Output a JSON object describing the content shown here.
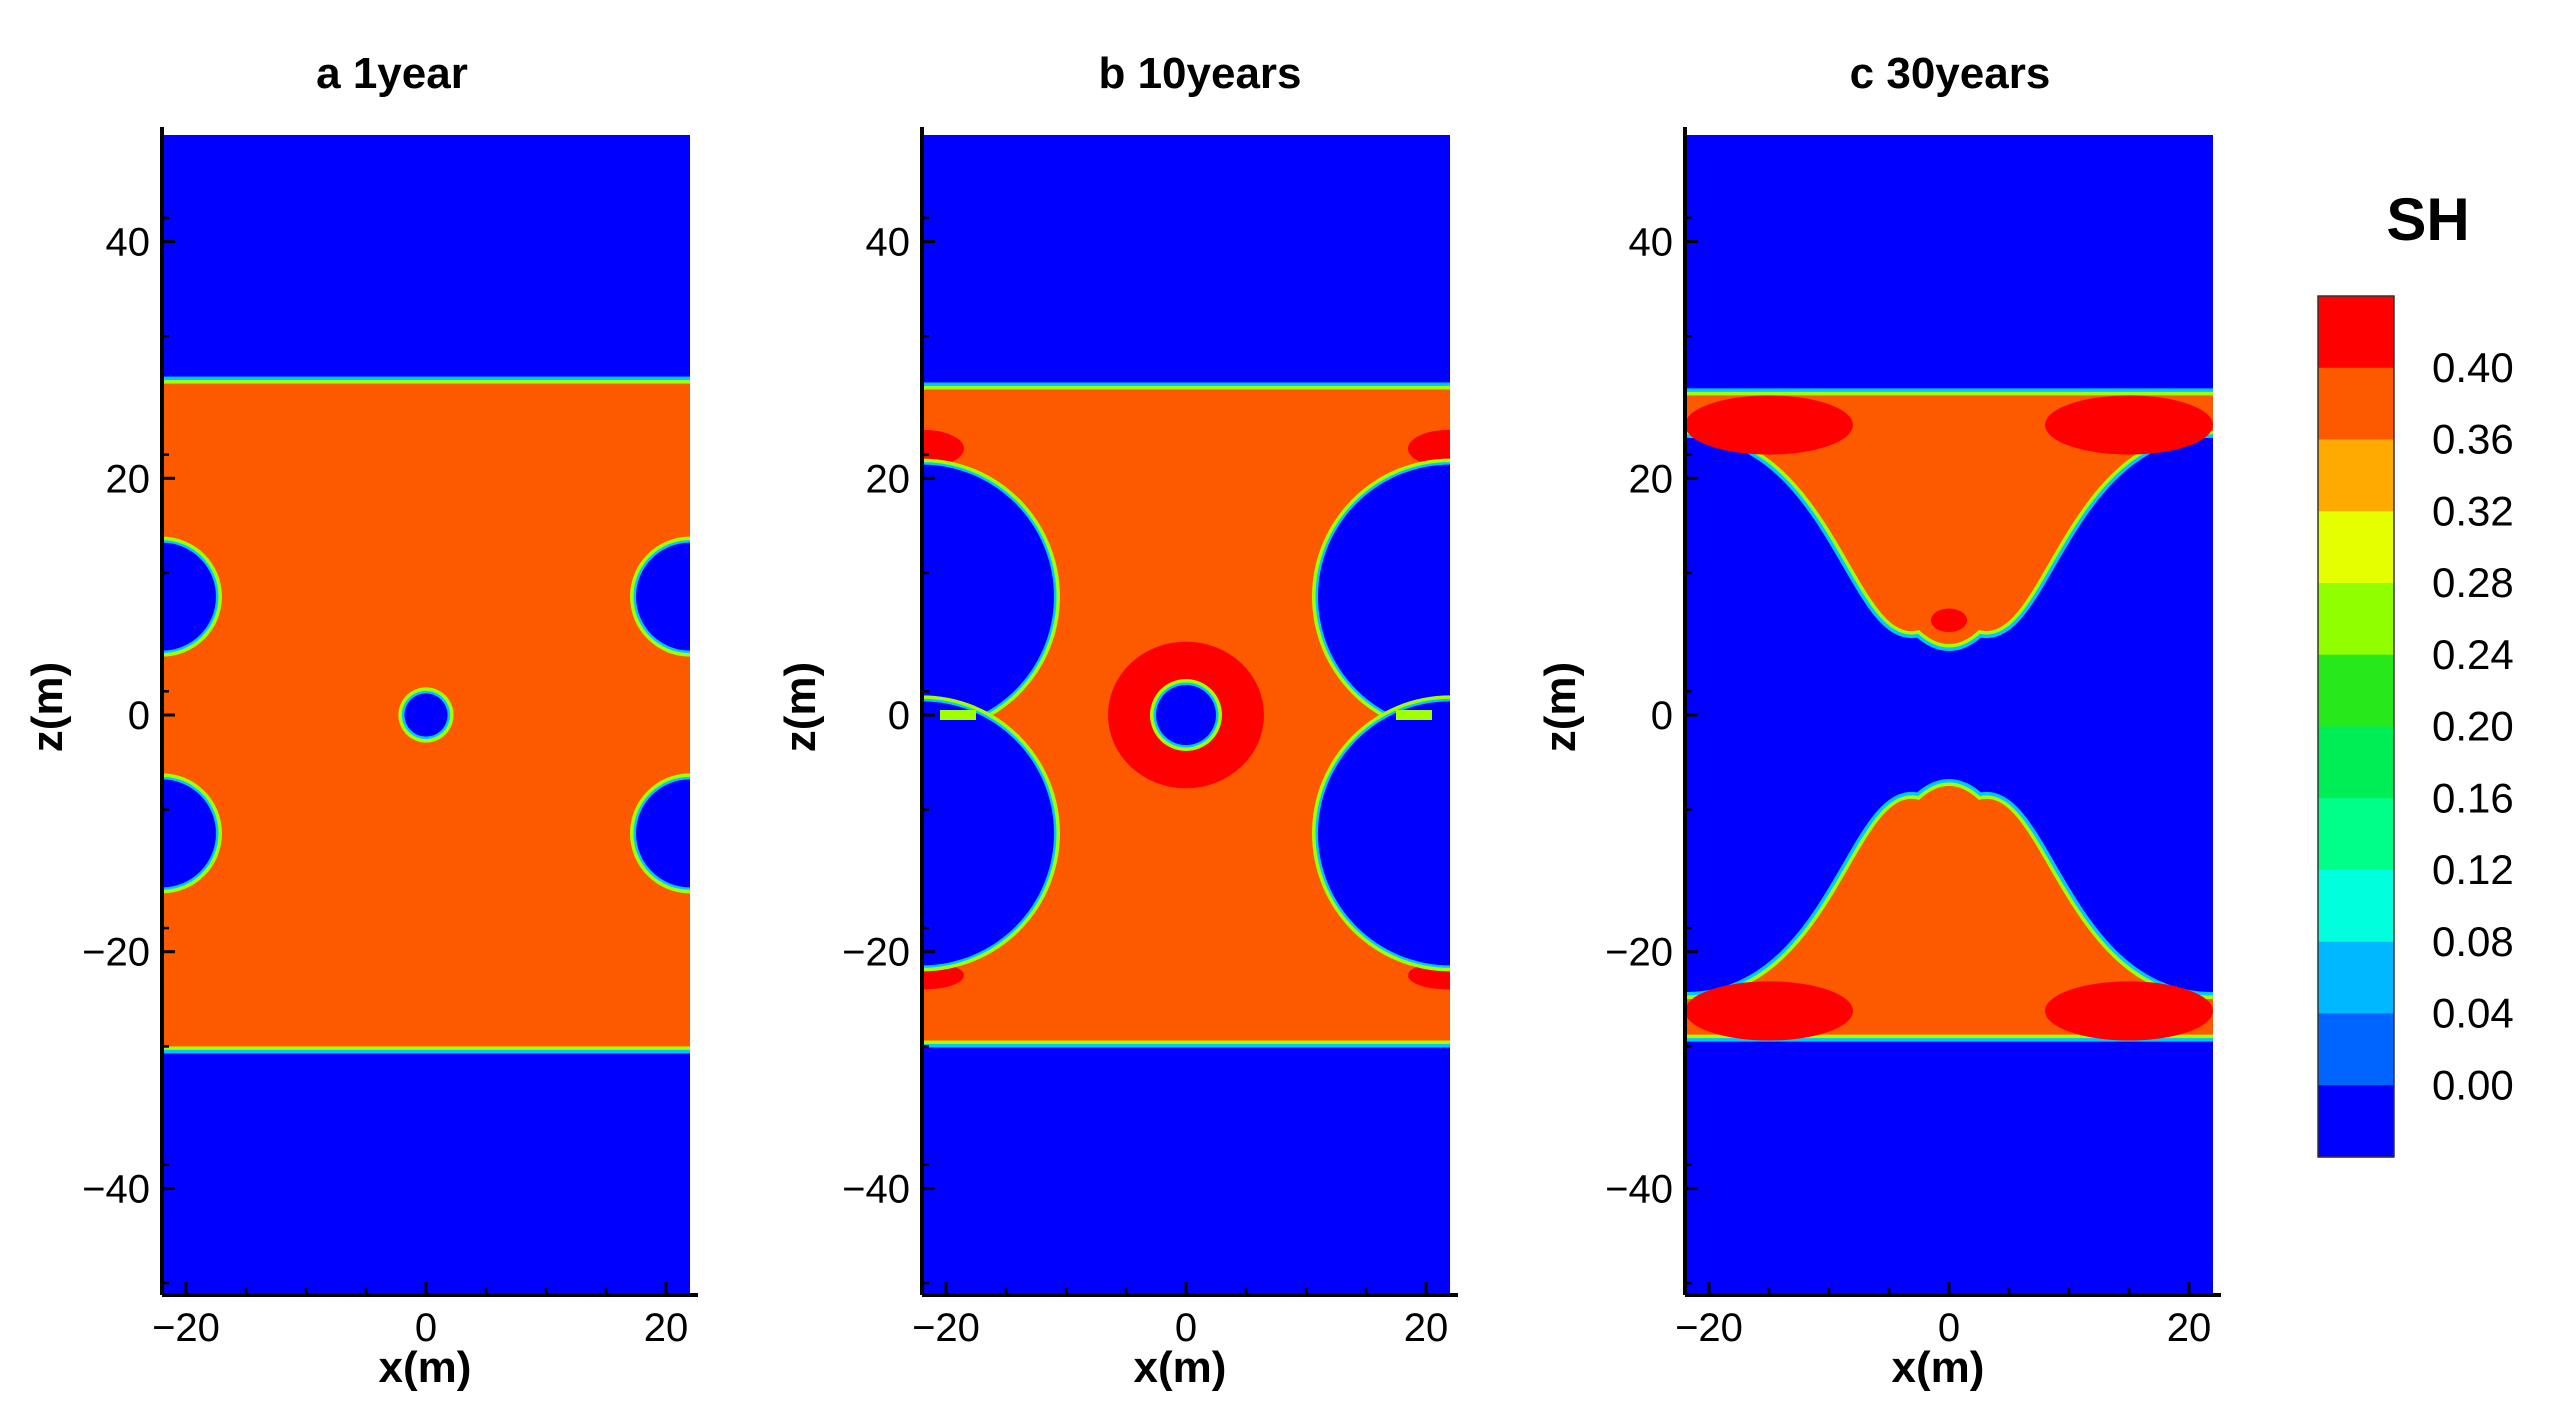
{
  "chart_data": [
    {
      "type": "heatmap",
      "title": "a 1year",
      "xlabel": "x(m)",
      "ylabel": "z(m)",
      "xlim": [
        -22,
        22
      ],
      "ylim": [
        -49,
        49
      ],
      "xticks": [
        -20,
        0,
        20
      ],
      "yticks": [
        -40,
        -20,
        0,
        20,
        40
      ],
      "xtick_labels": [
        "−20",
        "0",
        "20"
      ],
      "ytick_labels": [
        "−40",
        "−20",
        "0",
        "20",
        "40"
      ],
      "layer": {
        "z_top": 28,
        "z_bottom": -28,
        "value": 0.38
      },
      "background_value": 0.0,
      "wells": [
        {
          "x": 0,
          "z": 0,
          "r": 1.8
        },
        {
          "x": -22,
          "z": 10,
          "r": 4.5
        },
        {
          "x": -22,
          "z": -10,
          "r": 4.5
        },
        {
          "x": 22,
          "z": 10,
          "r": 4.5
        },
        {
          "x": 22,
          "z": -10,
          "r": 4.5
        }
      ]
    },
    {
      "type": "heatmap",
      "title": "b 10years",
      "xlabel": "x(m)",
      "ylabel": "z(m)",
      "xlim": [
        -22,
        22
      ],
      "ylim": [
        -49,
        49
      ],
      "xticks": [
        -20,
        0,
        20
      ],
      "yticks": [
        -40,
        -20,
        0,
        20,
        40
      ],
      "xtick_labels": [
        "−20",
        "0",
        "20"
      ],
      "ytick_labels": [
        "−40",
        "−20",
        "0",
        "20",
        "40"
      ],
      "layer": {
        "z_top": 27.5,
        "z_bottom": -27.5,
        "value": 0.38
      },
      "background_value": 0.0,
      "wells": [
        {
          "x": 0,
          "z": 0,
          "r": 2.5
        }
      ],
      "depleted_lobes": [
        {
          "x": -22,
          "z": 10,
          "r": 11
        },
        {
          "x": -22,
          "z": -10,
          "r": 11
        },
        {
          "x": 22,
          "z": 10,
          "r": 11
        },
        {
          "x": 22,
          "z": -10,
          "r": 11
        }
      ],
      "high_zones": [
        {
          "x": 0,
          "z": 0,
          "rx": 6.5,
          "rz": 6.2,
          "value": 0.42
        },
        {
          "x": -22,
          "z": 22.5,
          "rx": 3.5,
          "rz": 1.6,
          "value": 0.42
        },
        {
          "x": 22,
          "z": 22.5,
          "rx": 3.5,
          "rz": 1.6,
          "value": 0.42
        },
        {
          "x": -22,
          "z": -22,
          "rx": 3.5,
          "rz": 1.2,
          "value": 0.42
        },
        {
          "x": 22,
          "z": -22,
          "rx": 3.5,
          "rz": 1.2,
          "value": 0.42
        }
      ]
    },
    {
      "type": "heatmap",
      "title": "c 30years",
      "xlabel": "x(m)",
      "ylabel": "z(m)",
      "xlim": [
        -22,
        22
      ],
      "ylim": [
        -49,
        49
      ],
      "xticks": [
        -20,
        0,
        20
      ],
      "yticks": [
        -40,
        -20,
        0,
        20,
        40
      ],
      "xtick_labels": [
        "−20",
        "0",
        "20"
      ],
      "ytick_labels": [
        "−40",
        "−20",
        "0",
        "20",
        "40"
      ],
      "layer": {
        "z_top": 27,
        "z_bottom": -27,
        "value": 0.38
      },
      "background_value": 0.0,
      "remaining_lobes": [
        {
          "apex_z": 6.5,
          "base_z": 24,
          "shelf_z": 27,
          "value": 0.38
        },
        {
          "apex_z": -6.5,
          "base_z": -24,
          "shelf_z": -27,
          "value": 0.38
        }
      ],
      "high_zones": [
        {
          "x": -15,
          "z": 24.5,
          "rx": 7,
          "rz": 2.5,
          "value": 0.42
        },
        {
          "x": 15,
          "z": 24.5,
          "rx": 7,
          "rz": 2.5,
          "value": 0.42
        },
        {
          "x": -15,
          "z": -25,
          "rx": 7,
          "rz": 2.5,
          "value": 0.42
        },
        {
          "x": 15,
          "z": -25,
          "rx": 7,
          "rz": 2.5,
          "value": 0.42
        },
        {
          "x": 0,
          "z": 8,
          "rx": 1.5,
          "rz": 1,
          "value": 0.42
        }
      ]
    }
  ],
  "colorbar": {
    "title": "SH",
    "labels": [
      "0.40",
      "0.36",
      "0.32",
      "0.28",
      "0.24",
      "0.20",
      "0.16",
      "0.12",
      "0.08",
      "0.04",
      "0.00"
    ],
    "colors_top_to_bottom": [
      "#ff0000",
      "#fd5a00",
      "#ffaa00",
      "#e6ff00",
      "#90ff00",
      "#27e81a",
      "#00ee55",
      "#00ff88",
      "#00ffdd",
      "#00b8ff",
      "#0064ff",
      "#0000ff"
    ]
  },
  "palette": {
    "background": "#0000ff",
    "layer": "#fd5a00",
    "high": "#ff0000",
    "edge_outer": "#00c8ff",
    "edge_inner": "#a0ff00"
  }
}
